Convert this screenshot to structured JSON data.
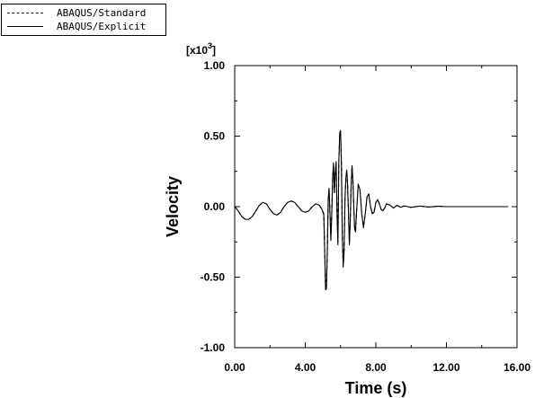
{
  "legend": {
    "entries": [
      {
        "label": "ABAQUS/Standard",
        "style": "dashed"
      },
      {
        "label": "ABAQUS/Explicit",
        "style": "solid"
      }
    ]
  },
  "chart_data": {
    "type": "line",
    "xlabel": "Time (s)",
    "ylabel": "Velocity",
    "y_multiplier_base": "[x10",
    "y_multiplier_exp": "3",
    "y_multiplier_close": "]",
    "xlim": [
      0,
      16
    ],
    "ylim": [
      -1.0,
      1.0
    ],
    "x_ticks": [
      0,
      4,
      8,
      12,
      16
    ],
    "x_tick_labels": [
      "0.00",
      "4.00",
      "8.00",
      "12.00",
      "16.00"
    ],
    "y_ticks": [
      1.0,
      0.5,
      0.0,
      -0.5,
      -1.0
    ],
    "y_tick_labels": [
      "1.00",
      "0.50",
      "0.00",
      "-0.50",
      "-1.00"
    ],
    "grid": false,
    "legend_position": "top-left",
    "series": [
      {
        "name": "ABAQUS/Standard",
        "style": "dashed",
        "x": [
          0.0,
          0.2,
          0.4,
          0.6,
          0.8,
          1.0,
          1.2,
          1.4,
          1.6,
          1.8,
          2.0,
          2.2,
          2.4,
          2.6,
          2.8,
          3.0,
          3.2,
          3.4,
          3.6,
          3.8,
          4.0,
          4.2,
          4.4,
          4.6,
          4.8,
          4.95,
          5.05,
          5.1,
          5.15,
          5.2,
          5.25,
          5.3,
          5.35,
          5.4,
          5.45,
          5.5,
          5.55,
          5.6,
          5.65,
          5.7,
          5.75,
          5.8,
          5.85,
          5.9,
          5.95,
          6.0,
          6.05,
          6.1,
          6.15,
          6.2,
          6.25,
          6.3,
          6.35,
          6.4,
          6.45,
          6.5,
          6.55,
          6.6,
          6.65,
          6.7,
          6.75,
          6.8,
          6.85,
          6.9,
          6.95,
          7.0,
          7.1,
          7.2,
          7.3,
          7.4,
          7.5,
          7.6,
          7.7,
          7.8,
          7.9,
          8.0,
          8.1,
          8.2,
          8.3,
          8.4,
          8.5,
          8.6,
          8.8,
          9.0,
          9.2,
          9.4,
          9.6,
          9.8,
          10.0,
          10.5,
          11.0,
          11.5,
          12.0,
          13.0,
          14.0,
          15.0,
          15.5
        ],
        "y": [
          0.0,
          -0.03,
          -0.07,
          -0.09,
          -0.09,
          -0.07,
          -0.03,
          0.01,
          0.03,
          0.02,
          -0.02,
          -0.05,
          -0.06,
          -0.04,
          0.0,
          0.03,
          0.04,
          0.03,
          0.0,
          -0.03,
          -0.04,
          -0.03,
          0.0,
          0.02,
          0.01,
          -0.02,
          -0.05,
          -0.3,
          -0.57,
          -0.56,
          -0.3,
          0.05,
          0.12,
          -0.05,
          -0.22,
          -0.05,
          0.2,
          0.3,
          0.1,
          0.25,
          0.3,
          -0.05,
          -0.25,
          0.3,
          0.5,
          0.52,
          0.3,
          -0.2,
          -0.4,
          -0.3,
          0.05,
          0.2,
          0.25,
          0.15,
          -0.05,
          -0.25,
          -0.1,
          0.15,
          0.28,
          0.18,
          0.0,
          -0.15,
          -0.17,
          -0.05,
          0.05,
          0.15,
          0.12,
          -0.05,
          -0.14,
          -0.05,
          0.07,
          0.09,
          0.0,
          -0.05,
          -0.04,
          0.03,
          0.05,
          0.02,
          -0.02,
          -0.03,
          -0.01,
          0.02,
          0.01,
          -0.01,
          0.01,
          -0.005,
          0.005,
          0.0,
          -0.005,
          0.004,
          -0.003,
          0.003,
          0.0,
          0.0,
          0.0,
          0.0,
          0.0
        ]
      },
      {
        "name": "ABAQUS/Explicit",
        "style": "solid",
        "x": [
          0.0,
          0.2,
          0.4,
          0.6,
          0.8,
          1.0,
          1.2,
          1.4,
          1.6,
          1.8,
          2.0,
          2.2,
          2.4,
          2.6,
          2.8,
          3.0,
          3.2,
          3.4,
          3.6,
          3.8,
          4.0,
          4.2,
          4.4,
          4.6,
          4.8,
          4.95,
          5.05,
          5.1,
          5.15,
          5.2,
          5.25,
          5.3,
          5.35,
          5.4,
          5.45,
          5.5,
          5.55,
          5.6,
          5.65,
          5.7,
          5.75,
          5.8,
          5.85,
          5.9,
          5.95,
          6.0,
          6.05,
          6.1,
          6.15,
          6.2,
          6.25,
          6.3,
          6.35,
          6.4,
          6.45,
          6.5,
          6.55,
          6.6,
          6.65,
          6.7,
          6.75,
          6.8,
          6.85,
          6.9,
          6.95,
          7.0,
          7.1,
          7.2,
          7.3,
          7.4,
          7.5,
          7.6,
          7.7,
          7.8,
          7.9,
          8.0,
          8.1,
          8.2,
          8.3,
          8.4,
          8.5,
          8.6,
          8.8,
          9.0,
          9.2,
          9.4,
          9.6,
          9.8,
          10.0,
          10.5,
          11.0,
          11.5,
          12.0,
          13.0,
          14.0,
          15.0,
          15.5
        ],
        "y": [
          0.0,
          -0.03,
          -0.07,
          -0.09,
          -0.09,
          -0.07,
          -0.03,
          0.01,
          0.03,
          0.02,
          -0.02,
          -0.05,
          -0.06,
          -0.04,
          0.0,
          0.03,
          0.04,
          0.03,
          0.0,
          -0.03,
          -0.04,
          -0.03,
          0.0,
          0.02,
          0.01,
          -0.02,
          -0.06,
          -0.32,
          -0.59,
          -0.58,
          -0.32,
          0.05,
          0.13,
          -0.05,
          -0.24,
          -0.06,
          0.2,
          0.31,
          0.1,
          0.24,
          0.32,
          -0.05,
          -0.27,
          0.3,
          0.52,
          0.54,
          0.3,
          -0.22,
          -0.43,
          -0.32,
          0.05,
          0.2,
          0.26,
          0.15,
          -0.05,
          -0.27,
          -0.1,
          0.15,
          0.29,
          0.18,
          0.0,
          -0.16,
          -0.18,
          -0.05,
          0.05,
          0.16,
          0.12,
          -0.05,
          -0.15,
          -0.05,
          0.07,
          0.09,
          0.0,
          -0.05,
          -0.04,
          0.03,
          0.05,
          0.02,
          -0.02,
          -0.03,
          -0.01,
          0.02,
          0.01,
          -0.01,
          0.01,
          -0.005,
          0.005,
          0.0,
          -0.005,
          0.004,
          -0.003,
          0.003,
          0.0,
          0.0,
          0.0,
          0.0,
          0.0
        ]
      }
    ]
  }
}
